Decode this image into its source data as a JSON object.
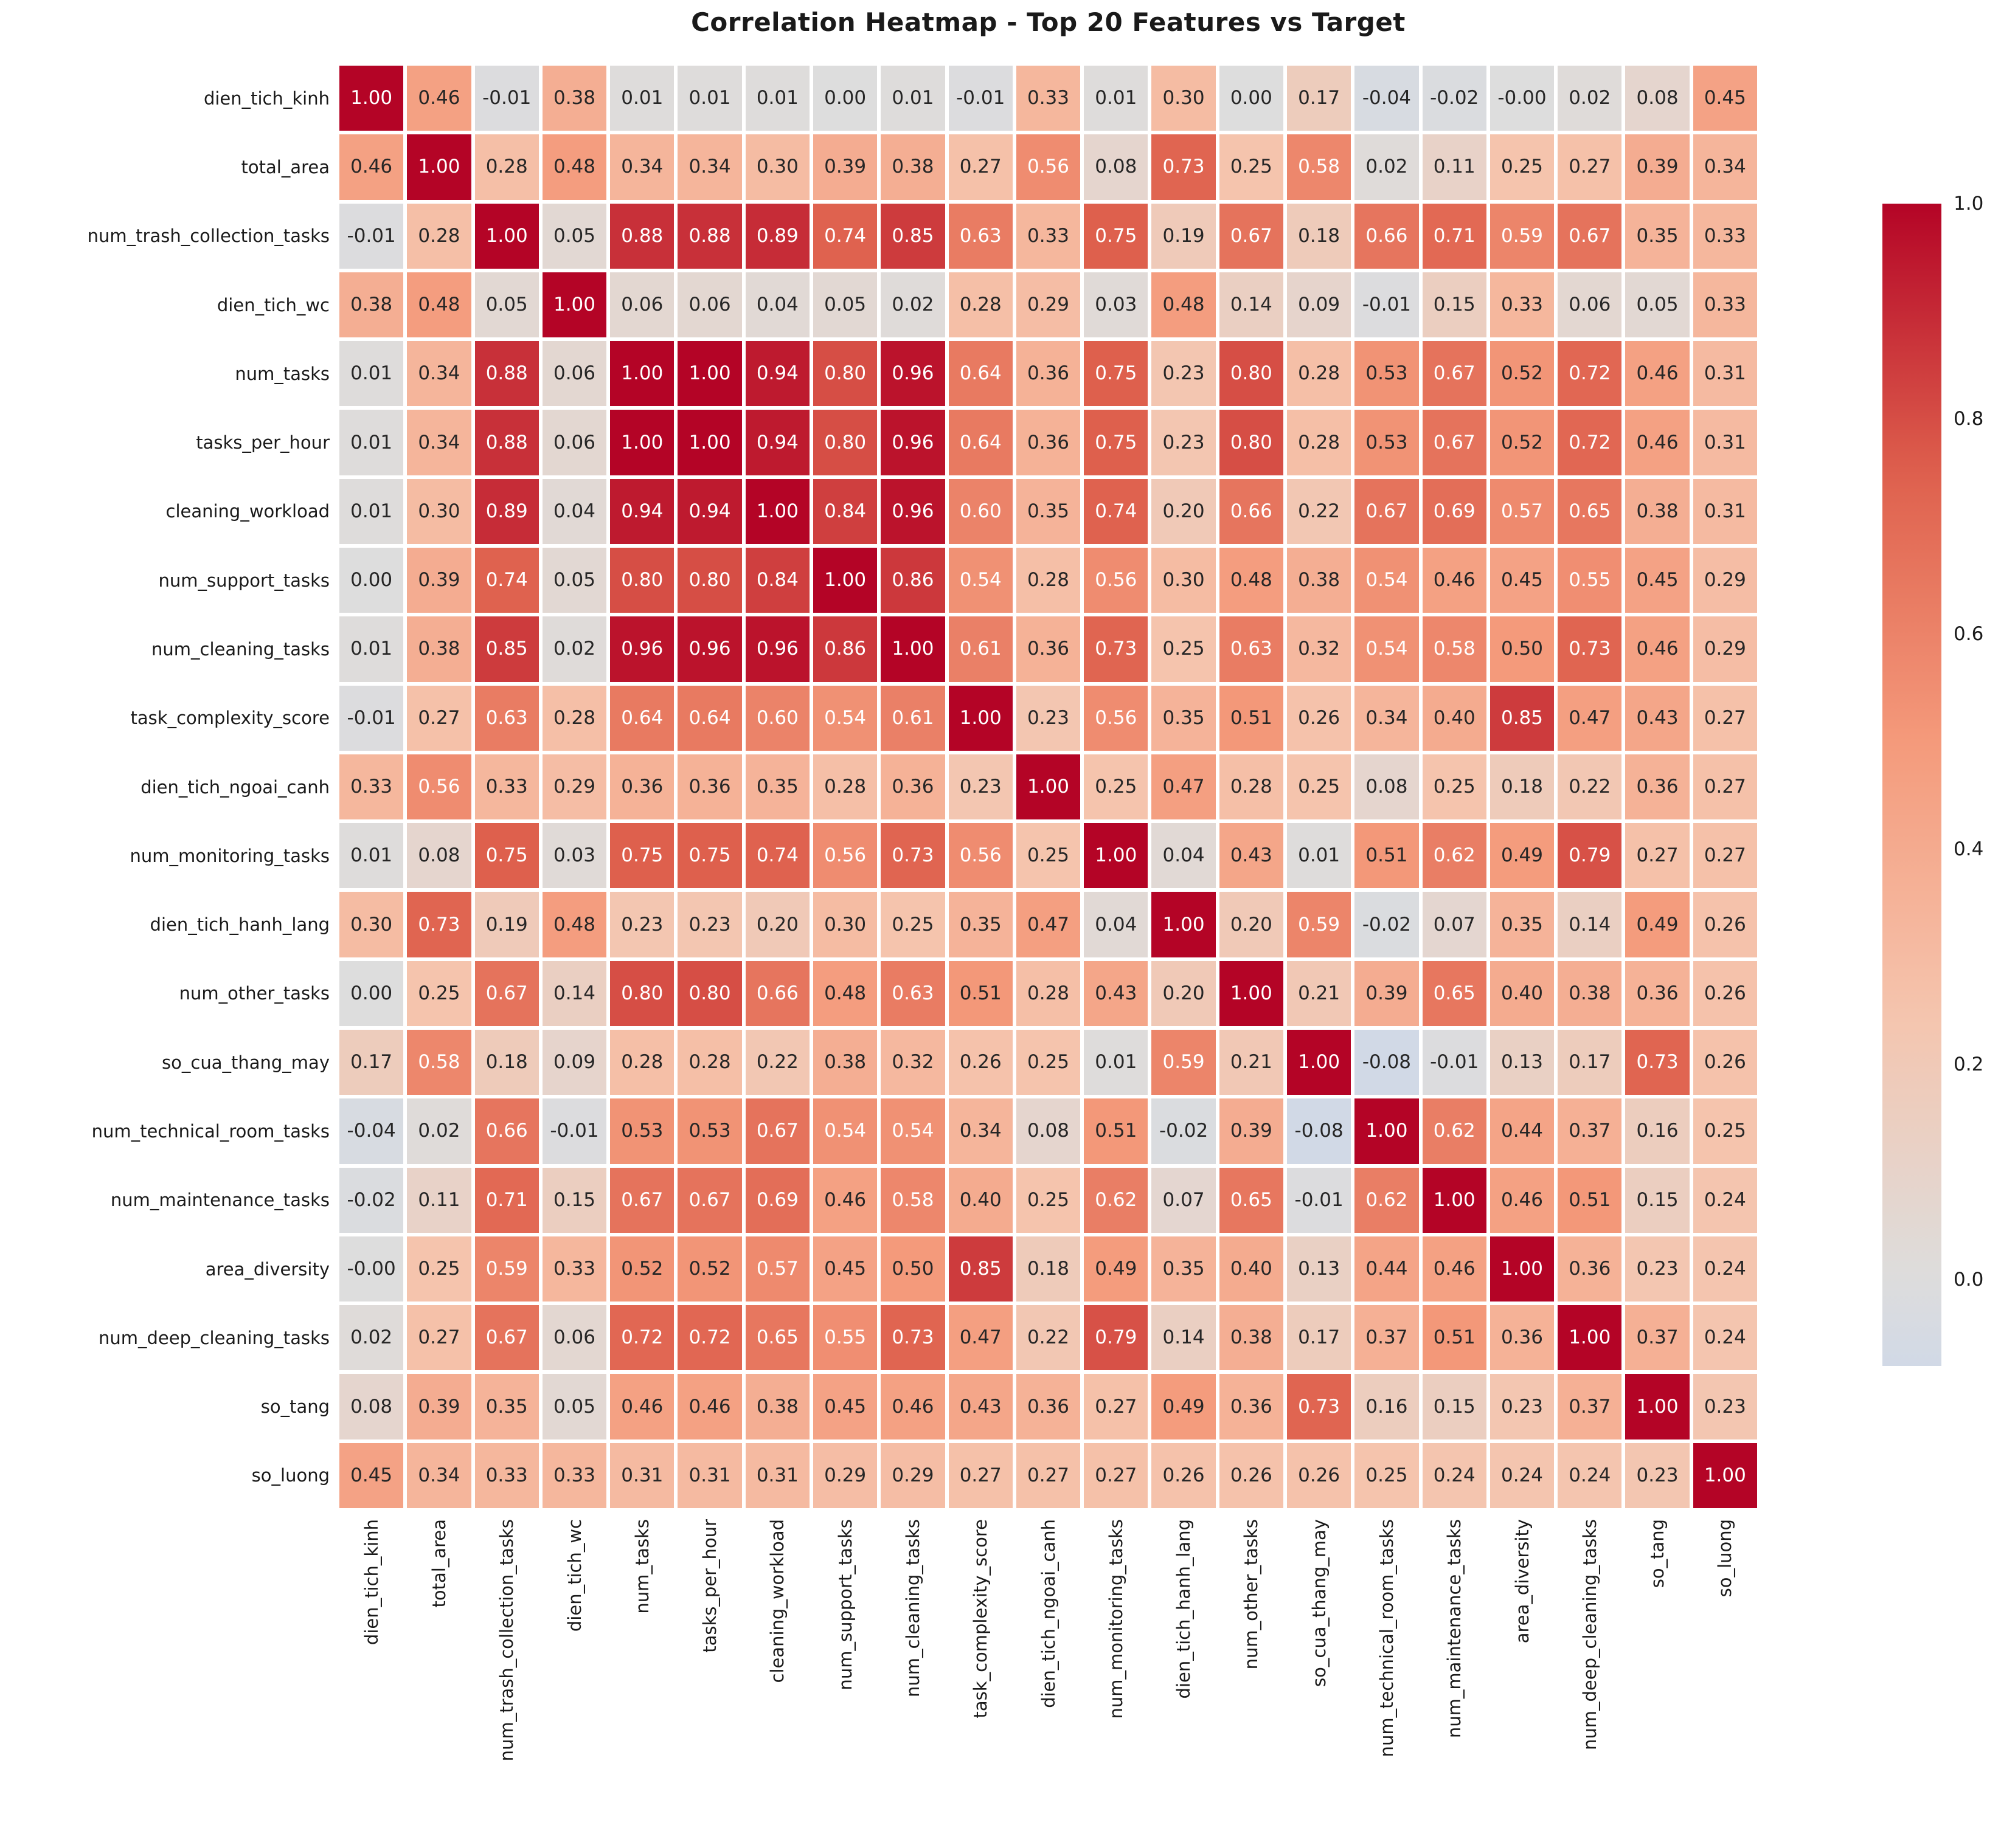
{
  "title": "Correlation Heatmap - Top 20 Features vs Target",
  "chart_data": {
    "type": "heatmap",
    "title": "Correlation Heatmap - Top 20 Features vs Target",
    "labels": [
      "dien_tich_kinh",
      "total_area",
      "num_trash_collection_tasks",
      "dien_tich_wc",
      "num_tasks",
      "tasks_per_hour",
      "cleaning_workload",
      "num_support_tasks",
      "num_cleaning_tasks",
      "task_complexity_score",
      "dien_tich_ngoai_canh",
      "num_monitoring_tasks",
      "dien_tich_hanh_lang",
      "num_other_tasks",
      "so_cua_thang_may",
      "num_technical_room_tasks",
      "num_maintenance_tasks",
      "area_diversity",
      "num_deep_cleaning_tasks",
      "so_tang",
      "so_luong"
    ],
    "matrix": [
      [
        "1.00",
        "0.46",
        "-0.01",
        "0.38",
        "0.01",
        "0.01",
        "0.01",
        "0.00",
        "0.01",
        "-0.01",
        "0.33",
        "0.01",
        "0.30",
        "0.00",
        "0.17",
        "-0.04",
        "-0.02",
        "-0.00",
        "0.02",
        "0.08",
        "0.45"
      ],
      [
        "0.46",
        "1.00",
        "0.28",
        "0.48",
        "0.34",
        "0.34",
        "0.30",
        "0.39",
        "0.38",
        "0.27",
        "0.56",
        "0.08",
        "0.73",
        "0.25",
        "0.58",
        "0.02",
        "0.11",
        "0.25",
        "0.27",
        "0.39",
        "0.34"
      ],
      [
        "-0.01",
        "0.28",
        "1.00",
        "0.05",
        "0.88",
        "0.88",
        "0.89",
        "0.74",
        "0.85",
        "0.63",
        "0.33",
        "0.75",
        "0.19",
        "0.67",
        "0.18",
        "0.66",
        "0.71",
        "0.59",
        "0.67",
        "0.35",
        "0.33"
      ],
      [
        "0.38",
        "0.48",
        "0.05",
        "1.00",
        "0.06",
        "0.06",
        "0.04",
        "0.05",
        "0.02",
        "0.28",
        "0.29",
        "0.03",
        "0.48",
        "0.14",
        "0.09",
        "-0.01",
        "0.15",
        "0.33",
        "0.06",
        "0.05",
        "0.33"
      ],
      [
        "0.01",
        "0.34",
        "0.88",
        "0.06",
        "1.00",
        "1.00",
        "0.94",
        "0.80",
        "0.96",
        "0.64",
        "0.36",
        "0.75",
        "0.23",
        "0.80",
        "0.28",
        "0.53",
        "0.67",
        "0.52",
        "0.72",
        "0.46",
        "0.31"
      ],
      [
        "0.01",
        "0.34",
        "0.88",
        "0.06",
        "1.00",
        "1.00",
        "0.94",
        "0.80",
        "0.96",
        "0.64",
        "0.36",
        "0.75",
        "0.23",
        "0.80",
        "0.28",
        "0.53",
        "0.67",
        "0.52",
        "0.72",
        "0.46",
        "0.31"
      ],
      [
        "0.01",
        "0.30",
        "0.89",
        "0.04",
        "0.94",
        "0.94",
        "1.00",
        "0.84",
        "0.96",
        "0.60",
        "0.35",
        "0.74",
        "0.20",
        "0.66",
        "0.22",
        "0.67",
        "0.69",
        "0.57",
        "0.65",
        "0.38",
        "0.31"
      ],
      [
        "0.00",
        "0.39",
        "0.74",
        "0.05",
        "0.80",
        "0.80",
        "0.84",
        "1.00",
        "0.86",
        "0.54",
        "0.28",
        "0.56",
        "0.30",
        "0.48",
        "0.38",
        "0.54",
        "0.46",
        "0.45",
        "0.55",
        "0.45",
        "0.29"
      ],
      [
        "0.01",
        "0.38",
        "0.85",
        "0.02",
        "0.96",
        "0.96",
        "0.96",
        "0.86",
        "1.00",
        "0.61",
        "0.36",
        "0.73",
        "0.25",
        "0.63",
        "0.32",
        "0.54",
        "0.58",
        "0.50",
        "0.73",
        "0.46",
        "0.29"
      ],
      [
        "-0.01",
        "0.27",
        "0.63",
        "0.28",
        "0.64",
        "0.64",
        "0.60",
        "0.54",
        "0.61",
        "1.00",
        "0.23",
        "0.56",
        "0.35",
        "0.51",
        "0.26",
        "0.34",
        "0.40",
        "0.85",
        "0.47",
        "0.43",
        "0.27"
      ],
      [
        "0.33",
        "0.56",
        "0.33",
        "0.29",
        "0.36",
        "0.36",
        "0.35",
        "0.28",
        "0.36",
        "0.23",
        "1.00",
        "0.25",
        "0.47",
        "0.28",
        "0.25",
        "0.08",
        "0.25",
        "0.18",
        "0.22",
        "0.36",
        "0.27"
      ],
      [
        "0.01",
        "0.08",
        "0.75",
        "0.03",
        "0.75",
        "0.75",
        "0.74",
        "0.56",
        "0.73",
        "0.56",
        "0.25",
        "1.00",
        "0.04",
        "0.43",
        "0.01",
        "0.51",
        "0.62",
        "0.49",
        "0.79",
        "0.27",
        "0.27"
      ],
      [
        "0.30",
        "0.73",
        "0.19",
        "0.48",
        "0.23",
        "0.23",
        "0.20",
        "0.30",
        "0.25",
        "0.35",
        "0.47",
        "0.04",
        "1.00",
        "0.20",
        "0.59",
        "-0.02",
        "0.07",
        "0.35",
        "0.14",
        "0.49",
        "0.26"
      ],
      [
        "0.00",
        "0.25",
        "0.67",
        "0.14",
        "0.80",
        "0.80",
        "0.66",
        "0.48",
        "0.63",
        "0.51",
        "0.28",
        "0.43",
        "0.20",
        "1.00",
        "0.21",
        "0.39",
        "0.65",
        "0.40",
        "0.38",
        "0.36",
        "0.26"
      ],
      [
        "0.17",
        "0.58",
        "0.18",
        "0.09",
        "0.28",
        "0.28",
        "0.22",
        "0.38",
        "0.32",
        "0.26",
        "0.25",
        "0.01",
        "0.59",
        "0.21",
        "1.00",
        "-0.08",
        "-0.01",
        "0.13",
        "0.17",
        "0.73",
        "0.26"
      ],
      [
        "-0.04",
        "0.02",
        "0.66",
        "-0.01",
        "0.53",
        "0.53",
        "0.67",
        "0.54",
        "0.54",
        "0.34",
        "0.08",
        "0.51",
        "-0.02",
        "0.39",
        "-0.08",
        "1.00",
        "0.62",
        "0.44",
        "0.37",
        "0.16",
        "0.25"
      ],
      [
        "-0.02",
        "0.11",
        "0.71",
        "0.15",
        "0.67",
        "0.67",
        "0.69",
        "0.46",
        "0.58",
        "0.40",
        "0.25",
        "0.62",
        "0.07",
        "0.65",
        "-0.01",
        "0.62",
        "1.00",
        "0.46",
        "0.51",
        "0.15",
        "0.24"
      ],
      [
        "-0.00",
        "0.25",
        "0.59",
        "0.33",
        "0.52",
        "0.52",
        "0.57",
        "0.45",
        "0.50",
        "0.85",
        "0.18",
        "0.49",
        "0.35",
        "0.40",
        "0.13",
        "0.44",
        "0.46",
        "1.00",
        "0.36",
        "0.23",
        "0.24"
      ],
      [
        "0.02",
        "0.27",
        "0.67",
        "0.06",
        "0.72",
        "0.72",
        "0.65",
        "0.55",
        "0.73",
        "0.47",
        "0.22",
        "0.79",
        "0.14",
        "0.38",
        "0.17",
        "0.37",
        "0.51",
        "0.36",
        "1.00",
        "0.37",
        "0.24"
      ],
      [
        "0.08",
        "0.39",
        "0.35",
        "0.05",
        "0.46",
        "0.46",
        "0.38",
        "0.45",
        "0.46",
        "0.43",
        "0.36",
        "0.27",
        "0.49",
        "0.36",
        "0.73",
        "0.16",
        "0.15",
        "0.23",
        "0.37",
        "1.00",
        "0.23"
      ],
      [
        "0.45",
        "0.34",
        "0.33",
        "0.33",
        "0.31",
        "0.31",
        "0.31",
        "0.29",
        "0.29",
        "0.27",
        "0.27",
        "0.27",
        "0.26",
        "0.26",
        "0.26",
        "0.25",
        "0.24",
        "0.24",
        "0.24",
        "0.23",
        "1.00"
      ]
    ],
    "vmin": -0.08,
    "vmax": 1.0,
    "colorbar_ticks": [
      "1.0",
      "0.8",
      "0.6",
      "0.4",
      "0.2",
      "0.0"
    ],
    "colormap": "coolwarm",
    "colormap_anchors": [
      "#3b4cc0",
      "#6382ea",
      "#8db0fe",
      "#b8d0f9",
      "#dddddd",
      "#f5c4ad",
      "#f49a7b",
      "#de604d",
      "#b40426"
    ],
    "cell_text_dark": "#262626",
    "cell_text_light": "#ffffff",
    "background": "#ffffff",
    "legend_position": "right",
    "grid": "white-cell-separators"
  }
}
